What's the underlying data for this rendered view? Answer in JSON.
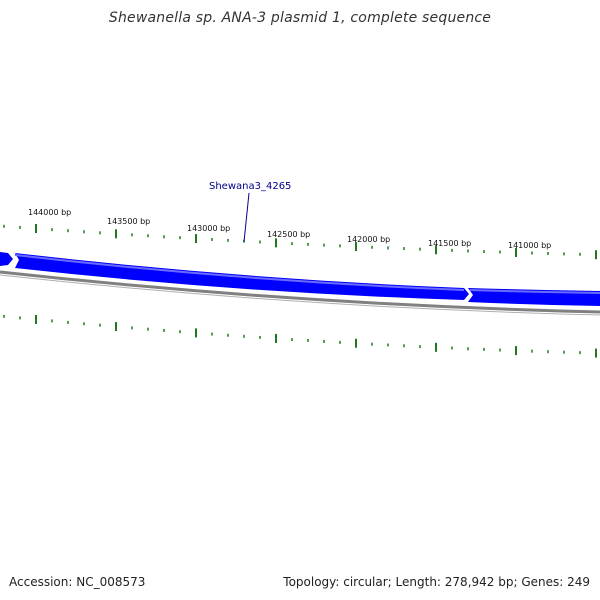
{
  "title": "Shewanella sp. ANA-3 plasmid 1, complete sequence",
  "footer": {
    "accession": "Accession: NC_008573",
    "summary": "Topology: circular; Length: 278,942 bp; Genes: 249"
  },
  "map": {
    "gene_label": "Shewana3_4265",
    "tick_labels": [
      "144000 bp",
      "143500 bp",
      "143000 bp",
      "142500 bp",
      "142000 bp",
      "141500 bp",
      "141000 bp"
    ],
    "colors": {
      "gene": "#0000ff",
      "gene_highlight": "#6a6aff",
      "backbone": "#808080",
      "ticks": "#1f7a1f",
      "label": "#00008b"
    }
  }
}
